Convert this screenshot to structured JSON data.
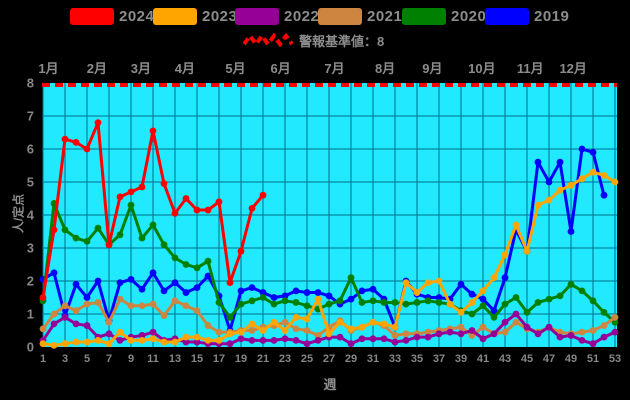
{
  "legend": {
    "items": [
      {
        "label": "2024",
        "color": "#ff0000"
      },
      {
        "label": "2023",
        "color": "#ffa500"
      },
      {
        "label": "2022",
        "color": "#960096"
      },
      {
        "label": "2021",
        "color": "#cd853f"
      },
      {
        "label": "2020",
        "color": "#008000"
      },
      {
        "label": "2019",
        "color": "#0000ff"
      }
    ],
    "threshold_label": "警報基準値：8",
    "threshold_color": "#ff0000"
  },
  "colors": {
    "background": "#000000",
    "plot_background": "#21e9ff",
    "grid": "#00708a",
    "text": "#8c8c8c"
  },
  "chart_data": {
    "type": "line",
    "title": "",
    "xlabel": "週",
    "ylabel": "人/定点",
    "x_range": [
      1,
      53
    ],
    "ylim": [
      0,
      8
    ],
    "grid": true,
    "legend_position": "top",
    "threshold": {
      "value": 8,
      "label": "警報基準値：8",
      "style": "dashed",
      "color": "#ff0000"
    },
    "x_ticks": [
      1,
      3,
      5,
      7,
      9,
      11,
      13,
      15,
      17,
      19,
      21,
      23,
      25,
      27,
      29,
      31,
      33,
      35,
      37,
      39,
      41,
      43,
      45,
      47,
      49,
      51,
      53
    ],
    "y_ticks": [
      0,
      1,
      2,
      3,
      4,
      5,
      6,
      7,
      8
    ],
    "months": [
      {
        "label": "1月",
        "week": 1.5
      },
      {
        "label": "2月",
        "week": 5.9
      },
      {
        "label": "3月",
        "week": 9.9
      },
      {
        "label": "4月",
        "week": 13.9
      },
      {
        "label": "5月",
        "week": 18.5
      },
      {
        "label": "6月",
        "week": 22.6
      },
      {
        "label": "7月",
        "week": 27.5
      },
      {
        "label": "8月",
        "week": 32.1
      },
      {
        "label": "9月",
        "week": 36.4
      },
      {
        "label": "10月",
        "week": 40.9
      },
      {
        "label": "11月",
        "week": 45.3
      },
      {
        "label": "12月",
        "week": 49.2
      }
    ],
    "x_weeks": [
      1,
      2,
      3,
      4,
      5,
      6,
      7,
      8,
      9,
      10,
      11,
      12,
      13,
      14,
      15,
      16,
      17,
      18,
      19,
      20,
      21,
      22,
      23,
      24,
      25,
      26,
      27,
      28,
      29,
      30,
      31,
      32,
      33,
      34,
      35,
      36,
      37,
      38,
      39,
      40,
      41,
      42,
      43,
      44,
      45,
      46,
      47,
      48,
      49,
      50,
      51,
      52,
      53
    ],
    "series": [
      {
        "name": "2024",
        "color": "#ff0000",
        "values": [
          1.5,
          3.55,
          6.3,
          6.2,
          6.0,
          6.8,
          3.1,
          4.55,
          4.7,
          4.85,
          6.55,
          4.95,
          4.05,
          4.5,
          4.15,
          4.15,
          4.4,
          1.95,
          2.9,
          4.2,
          4.6,
          null,
          null,
          null,
          null,
          null,
          null,
          null,
          null,
          null,
          null,
          null,
          null,
          null,
          null,
          null,
          null,
          null,
          null,
          null,
          null,
          null,
          null,
          null,
          null,
          null,
          null,
          null,
          null,
          null,
          null,
          null,
          null
        ]
      },
      {
        "name": "2023",
        "color": "#ffa500",
        "values": [
          0.1,
          0.05,
          0.1,
          0.15,
          0.15,
          0.2,
          0.1,
          0.45,
          0.2,
          0.2,
          0.25,
          0.15,
          0.15,
          0.3,
          0.3,
          0.2,
          0.2,
          0.4,
          0.45,
          0.7,
          0.5,
          0.75,
          0.5,
          0.9,
          0.85,
          1.45,
          0.4,
          0.75,
          0.55,
          0.6,
          0.75,
          0.7,
          0.6,
          1.95,
          1.65,
          1.95,
          2.0,
          1.3,
          1.05,
          1.35,
          1.7,
          2.1,
          2.8,
          3.7,
          2.9,
          4.3,
          4.45,
          4.75,
          4.9,
          5.1,
          5.3,
          5.2,
          5.0
        ]
      },
      {
        "name": "2022",
        "color": "#960096",
        "values": [
          0.2,
          0.7,
          0.9,
          0.7,
          0.65,
          0.3,
          0.4,
          0.2,
          0.3,
          0.35,
          0.45,
          0.2,
          0.25,
          0.15,
          0.15,
          0.1,
          0.1,
          0.1,
          0.25,
          0.2,
          0.2,
          0.2,
          0.25,
          0.2,
          0.1,
          0.2,
          0.3,
          0.3,
          0.1,
          0.25,
          0.25,
          0.25,
          0.15,
          0.2,
          0.3,
          0.3,
          0.4,
          0.45,
          0.4,
          0.5,
          0.25,
          0.4,
          0.75,
          1.0,
          0.6,
          0.4,
          0.6,
          0.3,
          0.35,
          0.2,
          0.1,
          0.3,
          0.45
        ]
      },
      {
        "name": "2021",
        "color": "#cd853f",
        "values": [
          0.55,
          1.0,
          1.25,
          1.1,
          1.3,
          1.35,
          0.75,
          1.45,
          1.25,
          1.25,
          1.3,
          0.95,
          1.4,
          1.25,
          1.1,
          0.65,
          0.45,
          0.45,
          0.5,
          0.5,
          0.6,
          0.65,
          0.75,
          0.55,
          0.5,
          0.35,
          0.6,
          0.8,
          0.5,
          0.6,
          0.75,
          0.65,
          0.35,
          0.4,
          0.4,
          0.45,
          0.5,
          0.55,
          0.6,
          0.35,
          0.6,
          0.4,
          0.45,
          0.75,
          0.55,
          0.45,
          0.6,
          0.45,
          0.4,
          0.45,
          0.5,
          0.65,
          0.9
        ]
      },
      {
        "name": "2020",
        "color": "#008000",
        "values": [
          1.4,
          4.35,
          3.55,
          3.3,
          3.2,
          3.6,
          3.1,
          3.4,
          4.3,
          3.3,
          3.7,
          3.1,
          2.7,
          2.5,
          2.4,
          2.6,
          1.35,
          0.9,
          1.3,
          1.4,
          1.5,
          1.3,
          1.4,
          1.35,
          1.25,
          1.15,
          1.3,
          1.4,
          2.1,
          1.35,
          1.4,
          1.35,
          1.35,
          1.3,
          1.35,
          1.4,
          1.35,
          1.3,
          1.1,
          1.0,
          1.25,
          0.9,
          1.3,
          1.5,
          1.05,
          1.35,
          1.45,
          1.55,
          1.9,
          1.7,
          1.4,
          1.05,
          0.75
        ]
      },
      {
        "name": "2019",
        "color": "#0000ff",
        "values": [
          2.05,
          2.25,
          0.95,
          1.9,
          1.5,
          2.0,
          0.8,
          1.95,
          2.05,
          1.75,
          2.25,
          1.7,
          1.95,
          1.65,
          1.8,
          2.15,
          1.55,
          0.5,
          1.7,
          1.8,
          1.65,
          1.5,
          1.55,
          1.7,
          1.65,
          1.65,
          1.55,
          1.3,
          1.45,
          1.7,
          1.75,
          1.45,
          0.6,
          2.0,
          1.6,
          1.5,
          1.5,
          1.45,
          1.9,
          1.6,
          1.45,
          1.1,
          2.1,
          3.55,
          2.9,
          5.6,
          5.0,
          5.6,
          3.5,
          6.0,
          5.9,
          4.6,
          null
        ]
      }
    ]
  }
}
